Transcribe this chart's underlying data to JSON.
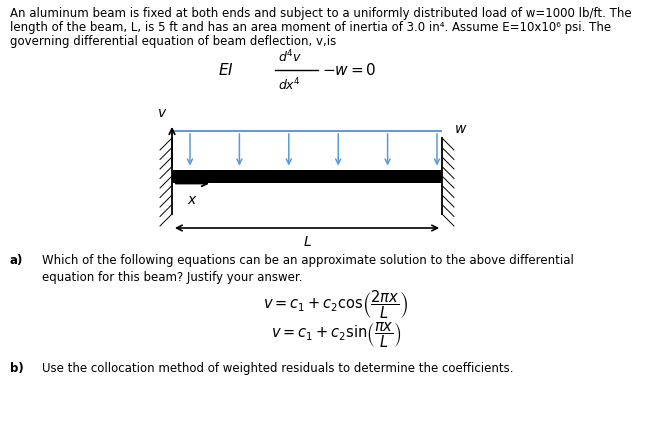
{
  "bg_color": "#ffffff",
  "black": "#000000",
  "blue_text": "#2255aa",
  "arrow_color": "#5b9bd5",
  "line1": "An aluminum beam is fixed at both ends and subject to a uniformly distributed load of w=1000 lb/ft. The",
  "line2": "length of the beam, L, is 5 ft and has an area moment of inertia of 3.0 in⁴. Assume E=10x10⁶ psi. The",
  "line3": "governing differential equation of beam deflection, v,is",
  "part_a_text1": "Which of the following equations can be an approximate solution to the above differential",
  "part_a_text2": "equation for this beam? Justify your answer.",
  "part_b_text": "Use the collocation method of weighted residuals to determine the coefficients.",
  "fig_width": 6.72,
  "fig_height": 4.34,
  "dpi": 100
}
